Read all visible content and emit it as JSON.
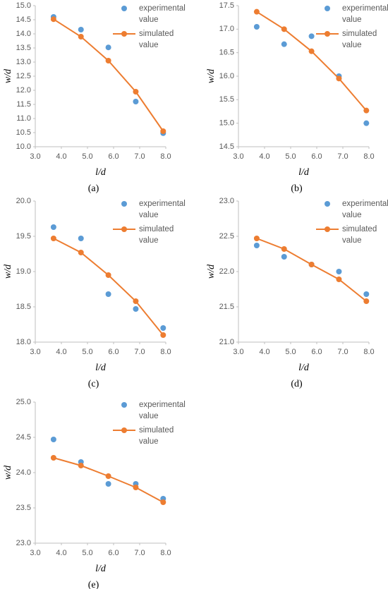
{
  "chart_data": [
    {
      "type": "line",
      "caption": "(a)",
      "xlabel": "l/d",
      "ylabel": "w/d",
      "x": [
        3.7,
        4.75,
        5.8,
        6.85,
        7.9
      ],
      "series": [
        {
          "name": "experimental value",
          "color": "#5b9bd5",
          "line": false,
          "values": [
            14.6,
            14.15,
            13.52,
            11.6,
            10.48
          ]
        },
        {
          "name": "simulated value",
          "color": "#ed7d31",
          "line": true,
          "values": [
            14.52,
            13.9,
            13.05,
            11.95,
            10.55
          ]
        }
      ],
      "xlim": [
        3,
        8
      ],
      "xticks": [
        {
          "value": 3,
          "label": "3.0"
        },
        {
          "value": 4,
          "label": "4.0"
        },
        {
          "value": 5,
          "label": "5.0"
        },
        {
          "value": 6,
          "label": "6.0"
        },
        {
          "value": 7,
          "label": "7.0"
        },
        {
          "value": 8,
          "label": "8.0"
        }
      ],
      "ylim": [
        10,
        15
      ],
      "yticks": [
        {
          "value": 10,
          "label": "10.0"
        },
        10.5,
        {
          "value": 11,
          "label": "11.0"
        },
        11.5,
        {
          "value": 12,
          "label": "12.0"
        },
        12.5,
        {
          "value": 13,
          "label": "13.0"
        },
        13.5,
        {
          "value": 14,
          "label": "14.0"
        },
        14.5,
        {
          "value": 15,
          "label": "15.0"
        }
      ]
    },
    {
      "type": "line",
      "caption": "(b)",
      "xlabel": "l/d",
      "ylabel": "w/d",
      "x": [
        3.7,
        4.75,
        5.8,
        6.85,
        7.9
      ],
      "series": [
        {
          "name": "experimental value",
          "color": "#5b9bd5",
          "line": false,
          "values": [
            17.05,
            16.68,
            16.85,
            16.0,
            15.0
          ]
        },
        {
          "name": "simulated value",
          "color": "#ed7d31",
          "line": true,
          "values": [
            17.37,
            17.0,
            16.53,
            15.95,
            15.27
          ]
        }
      ],
      "xlim": [
        3,
        8
      ],
      "xticks": [
        {
          "value": 3,
          "label": "3.0"
        },
        {
          "value": 4,
          "label": "4.0"
        },
        {
          "value": 5,
          "label": "5.0"
        },
        {
          "value": 6,
          "label": "6.0"
        },
        {
          "value": 7,
          "label": "7.0"
        },
        {
          "value": 8,
          "label": "8.0"
        }
      ],
      "ylim": [
        14.5,
        17.5
      ],
      "yticks": [
        14.5,
        {
          "value": 15,
          "label": "15.0"
        },
        15.5,
        {
          "value": 16,
          "label": "16.0"
        },
        16.5,
        {
          "value": 17,
          "label": "17.0"
        },
        17.5
      ]
    },
    {
      "type": "line",
      "caption": "(c)",
      "xlabel": "l/d",
      "ylabel": "w/d",
      "x": [
        3.7,
        4.75,
        5.8,
        6.85,
        7.9
      ],
      "series": [
        {
          "name": "experimental value",
          "color": "#5b9bd5",
          "line": false,
          "values": [
            19.63,
            19.47,
            18.68,
            18.47,
            18.2
          ]
        },
        {
          "name": "simulated value",
          "color": "#ed7d31",
          "line": true,
          "values": [
            19.47,
            19.27,
            18.95,
            18.58,
            18.1
          ]
        }
      ],
      "xlim": [
        3,
        8
      ],
      "xticks": [
        {
          "value": 3,
          "label": "3.0"
        },
        {
          "value": 4,
          "label": "4.0"
        },
        {
          "value": 5,
          "label": "5.0"
        },
        {
          "value": 6,
          "label": "6.0"
        },
        {
          "value": 7,
          "label": "7.0"
        },
        {
          "value": 8,
          "label": "8.0"
        }
      ],
      "ylim": [
        18,
        20
      ],
      "yticks": [
        {
          "value": 18,
          "label": "18.0"
        },
        18.5,
        {
          "value": 19,
          "label": "19.0"
        },
        19.5,
        {
          "value": 20,
          "label": "20.0"
        }
      ]
    },
    {
      "type": "line",
      "caption": "(d)",
      "xlabel": "l/d",
      "ylabel": "w/d",
      "x": [
        3.7,
        4.75,
        5.8,
        6.85,
        7.9
      ],
      "series": [
        {
          "name": "experimental value",
          "color": "#5b9bd5",
          "line": false,
          "values": [
            22.37,
            22.21,
            22.1,
            22.0,
            21.68
          ]
        },
        {
          "name": "simulated value",
          "color": "#ed7d31",
          "line": true,
          "values": [
            22.47,
            22.32,
            22.1,
            21.89,
            21.58
          ]
        }
      ],
      "xlim": [
        3,
        8
      ],
      "xticks": [
        {
          "value": 3,
          "label": "3.0"
        },
        {
          "value": 4,
          "label": "4.0"
        },
        {
          "value": 5,
          "label": "5.0"
        },
        {
          "value": 6,
          "label": "6.0"
        },
        {
          "value": 7,
          "label": "7.0"
        },
        {
          "value": 8,
          "label": "8.0"
        }
      ],
      "ylim": [
        21,
        23
      ],
      "yticks": [
        {
          "value": 21,
          "label": "21.0"
        },
        21.5,
        {
          "value": 22,
          "label": "22.0"
        },
        22.5,
        {
          "value": 23,
          "label": "23.0"
        }
      ]
    },
    {
      "type": "line",
      "caption": "(e)",
      "xlabel": "l/d",
      "ylabel": "w/d",
      "x": [
        3.7,
        4.75,
        5.8,
        6.85,
        7.9
      ],
      "series": [
        {
          "name": "experimental value",
          "color": "#5b9bd5",
          "line": false,
          "values": [
            24.47,
            24.15,
            23.84,
            23.84,
            23.63
          ]
        },
        {
          "name": "simulated value",
          "color": "#ed7d31",
          "line": true,
          "values": [
            24.21,
            24.1,
            23.95,
            23.79,
            23.58
          ]
        }
      ],
      "xlim": [
        3,
        8
      ],
      "xticks": [
        {
          "value": 3,
          "label": "3.0"
        },
        {
          "value": 4,
          "label": "4.0"
        },
        {
          "value": 5,
          "label": "5.0"
        },
        {
          "value": 6,
          "label": "6.0"
        },
        {
          "value": 7,
          "label": "7.0"
        },
        {
          "value": 8,
          "label": "8.0"
        }
      ],
      "ylim": [
        23,
        25
      ],
      "yticks": [
        {
          "value": 23,
          "label": "23.0"
        },
        23.5,
        {
          "value": 24,
          "label": "24.0"
        },
        24.5,
        {
          "value": 25,
          "label": "25.0"
        }
      ]
    }
  ]
}
